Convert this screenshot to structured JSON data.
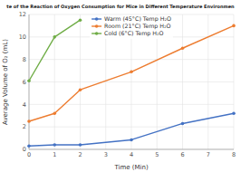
{
  "chart_data": {
    "type": "line",
    "title": "te of the Reaction of Oxygen Consumption for Mice in Different Temperature Environmen",
    "x_label": "Time (Min)",
    "y_label": "Average Volume of O₂ (mL)",
    "x": [
      0,
      1,
      2,
      4,
      6,
      8
    ],
    "series": [
      {
        "name": "Warm (45°C) Temp H₂O",
        "color": "#4472C4",
        "line_style": "solid",
        "values": [
          0.3,
          0.4,
          0.4,
          0.85,
          2.3,
          3.2
        ]
      },
      {
        "name": "Room (21°C) Temp H₂O",
        "color": "#ED7D31",
        "line_style": "solid",
        "values": [
          2.5,
          3.2,
          5.3,
          6.9,
          9.0,
          11.0
        ]
      },
      {
        "name": "Cold (6°C) Temp H₂O",
        "color": "#70AD47",
        "line_style": "solid",
        "values": [
          6.1,
          10.0,
          11.5,
          null,
          null,
          null
        ]
      }
    ],
    "xlim": [
      0,
      8
    ],
    "ylim": [
      0,
      12
    ],
    "xticks": [
      0,
      1,
      2,
      3,
      4,
      5,
      6,
      7,
      8
    ],
    "yticks": [
      0,
      2,
      4,
      6,
      8,
      10,
      12
    ],
    "grid": true,
    "legend": "upper center",
    "marker": "circle"
  }
}
